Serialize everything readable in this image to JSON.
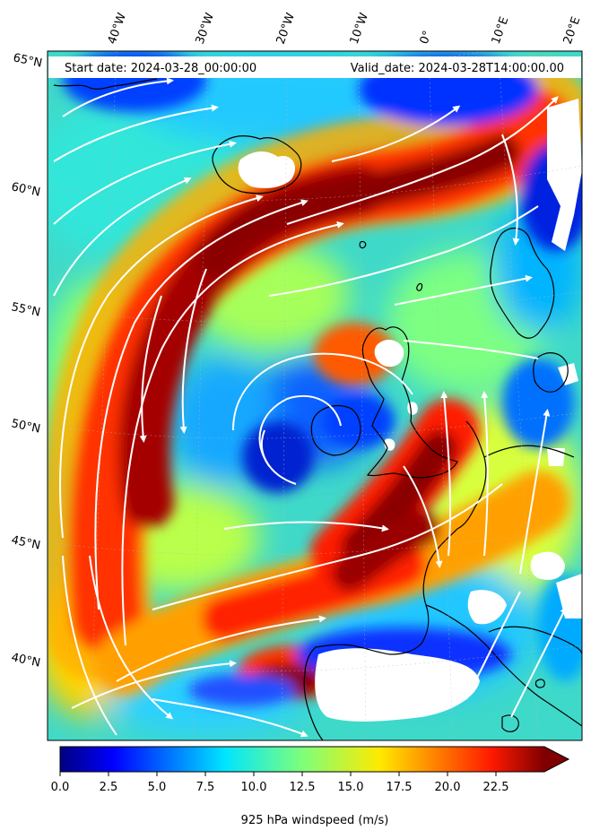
{
  "header": {
    "start_date": "Start date: 2024-03-28_00:00:00",
    "valid_date": "Valid_date: 2024-03-28T14:00:00.00"
  },
  "longitude_labels": [
    "40°W",
    "30°W",
    "20°W",
    "10°W",
    "0°",
    "10°E",
    "20°E"
  ],
  "latitude_labels": [
    "65°N",
    "60°N",
    "55°N",
    "50°N",
    "45°N",
    "40°N"
  ],
  "colorbar": {
    "ticks": [
      "0.0",
      "2.5",
      "5.0",
      "7.5",
      "10.0",
      "12.5",
      "15.0",
      "17.5",
      "20.0",
      "22.5"
    ],
    "min": 0,
    "max": 25,
    "extend": "max",
    "colormap": "jet",
    "label": "925 hPa windspeed (m/s)"
  },
  "colors": {
    "streamlines": "#ffffff",
    "coastline": "#000000",
    "masked_terrain": "#ffffff"
  }
}
